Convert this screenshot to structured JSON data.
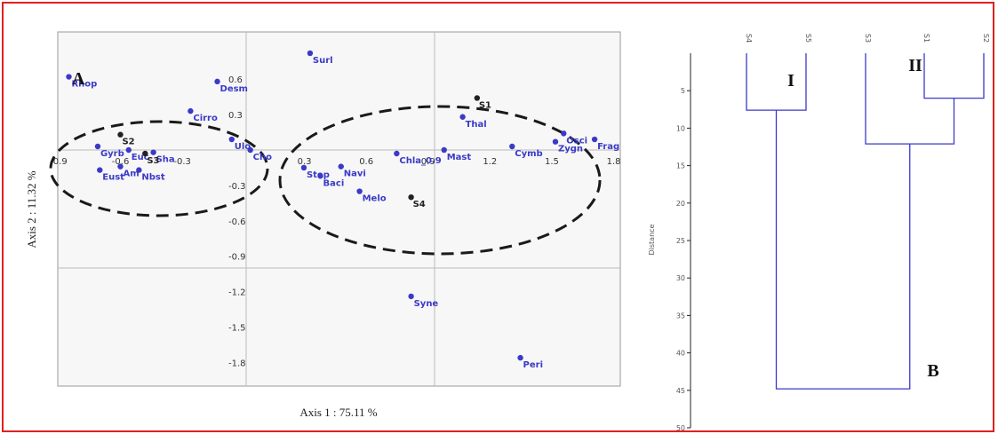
{
  "chart_data": [
    {
      "type": "scatter",
      "panel_label": "A",
      "xlabel": "Axis 1 : 75.11 %",
      "ylabel": "Axis 2 : 11.32 %",
      "xlim": [
        -1.05,
        1.75
      ],
      "ylim": [
        -2.05,
        0.85
      ],
      "x_ticks": [
        "-0.9",
        "-0.6",
        "-0.3",
        "0.3",
        "0.6",
        "0.9",
        "1.2",
        "1.5",
        "1.8"
      ],
      "x_tick_values": [
        -0.9,
        -0.6,
        -0.3,
        0.3,
        0.6,
        0.9,
        1.2,
        1.5,
        1.8
      ],
      "y_ticks": [
        "0.6",
        "0.3",
        "-0.3",
        "-0.6",
        "-0.9",
        "-1.2",
        "-1.5",
        "-1.8"
      ],
      "y_tick_values": [
        0.6,
        0.3,
        -0.3,
        -0.6,
        -0.9,
        -1.2,
        -1.5,
        -1.8
      ],
      "colors": {
        "taxa": "#3a3ac8",
        "sites": "#222222",
        "ellipse": "#1a1a1a",
        "grid": "#bbbbbb"
      },
      "taxa": [
        {
          "name": "Rhop",
          "x": -0.86,
          "y": 0.62
        },
        {
          "name": "Desm",
          "x": -0.14,
          "y": 0.58
        },
        {
          "name": "Surl",
          "x": 0.31,
          "y": 0.82
        },
        {
          "name": "Cirro",
          "x": -0.27,
          "y": 0.33
        },
        {
          "name": "Ulo",
          "x": -0.07,
          "y": 0.09
        },
        {
          "name": "Cho",
          "x": 0.02,
          "y": 0.0
        },
        {
          "name": "Gyrb",
          "x": -0.72,
          "y": 0.03
        },
        {
          "name": "Euc",
          "x": -0.57,
          "y": 0.0
        },
        {
          "name": "Sha",
          "x": -0.45,
          "y": -0.02
        },
        {
          "name": "Eust",
          "x": -0.71,
          "y": -0.17
        },
        {
          "name": "Am",
          "x": -0.61,
          "y": -0.14
        },
        {
          "name": "Nbst",
          "x": -0.52,
          "y": -0.17
        },
        {
          "name": "Step",
          "x": 0.28,
          "y": -0.15
        },
        {
          "name": "Baci",
          "x": 0.36,
          "y": -0.22
        },
        {
          "name": "Navi",
          "x": 0.46,
          "y": -0.14
        },
        {
          "name": "Melo",
          "x": 0.55,
          "y": -0.35
        },
        {
          "name": "Chla_0.9",
          "x": 0.73,
          "y": -0.03
        },
        {
          "name": "Mast",
          "x": 0.96,
          "y": 0.0
        },
        {
          "name": "Thal",
          "x": 1.05,
          "y": 0.28
        },
        {
          "name": "Cymb",
          "x": 1.29,
          "y": 0.03
        },
        {
          "name": "Osci",
          "x": 1.54,
          "y": 0.14
        },
        {
          "name": "Zygn",
          "x": 1.5,
          "y": 0.07
        },
        {
          "name": "Frag",
          "x": 1.69,
          "y": 0.09
        },
        {
          "name": "Syne",
          "x": 0.8,
          "y": -1.24
        },
        {
          "name": "Peri",
          "x": 1.33,
          "y": -1.76
        }
      ],
      "sites": [
        {
          "name": "S2",
          "x": -0.61,
          "y": 0.13
        },
        {
          "name": "S3",
          "x": -0.49,
          "y": -0.03
        },
        {
          "name": "S4",
          "x": 0.8,
          "y": -0.4
        },
        {
          "name": "S1",
          "x": 1.12,
          "y": 0.44
        }
      ]
    },
    {
      "type": "dendrogram",
      "panel_label": "B",
      "ylabel": "Distance",
      "ylim": [
        0,
        50
      ],
      "y_ticks": [
        5,
        10,
        15,
        20,
        25,
        30,
        35,
        40,
        45,
        50
      ],
      "leaves": [
        "S4",
        "S5",
        "S3",
        "S1",
        "S2"
      ],
      "groups": [
        "I",
        "II"
      ],
      "merges": [
        {
          "left": "S4",
          "right": "S5",
          "height": 7.6
        },
        {
          "left": "S1",
          "right": "S2",
          "height": 6.0
        },
        {
          "left": "S3",
          "right": "S1+S2",
          "height": 12.1
        },
        {
          "left": "S4+S5",
          "right": "S3+S1+S2",
          "height": 44.8
        }
      ],
      "colors": {
        "branches": "#3a3ac8",
        "axis": "#222222"
      }
    }
  ]
}
